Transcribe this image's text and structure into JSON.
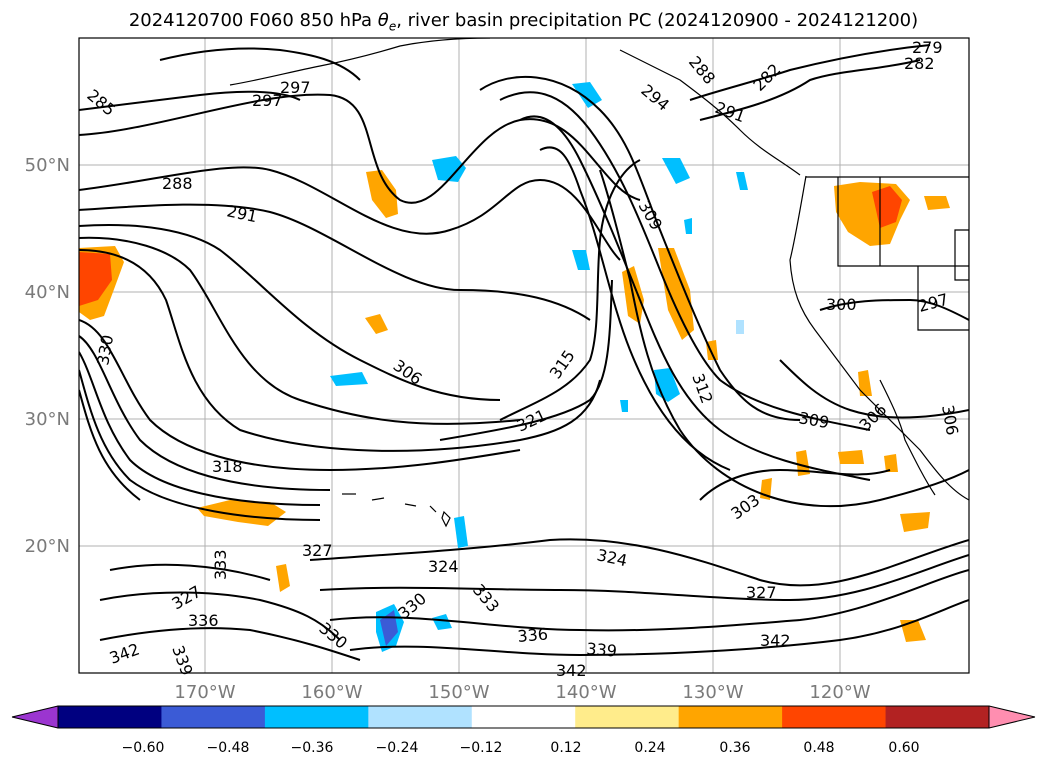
{
  "title": "2024120700 F060 850 hPa θe, river basin precipitation PC (2024120900 - 2024121200)",
  "title_parts": {
    "prefix": "2024120700 F060 850 hPa ",
    "theta": "θ",
    "sub": "e",
    "suffix": ", river basin precipitation PC (2024120900 - 2024121200)"
  },
  "map": {
    "lat_labels": [
      "50°N",
      "40°N",
      "30°N",
      "20°N"
    ],
    "lon_labels": [
      "170°W",
      "160°W",
      "150°W",
      "140°W",
      "130°W",
      "120°W"
    ],
    "contour_labels": [
      "285",
      "297",
      "297",
      "288",
      "291",
      "279",
      "282",
      "282",
      "288",
      "294",
      "291",
      "309",
      "300",
      "297",
      "306",
      "315",
      "312",
      "321",
      "309",
      "306",
      "306",
      "303",
      "318",
      "330",
      "333",
      "327",
      "327",
      "324",
      "324",
      "330",
      "333",
      "336",
      "339",
      "342",
      "342",
      "336",
      "339",
      "327",
      "342",
      "330"
    ],
    "colors": {
      "line": "#000000",
      "grid": "#b0b0b0",
      "coast": "#000000"
    }
  },
  "colorbar": {
    "ticks": [
      "−0.60",
      "−0.48",
      "−0.36",
      "−0.24",
      "−0.12",
      "0.12",
      "0.24",
      "0.36",
      "0.48",
      "0.60"
    ],
    "colors": [
      "#9b35d0",
      "#000080",
      "#3b5bd6",
      "#00bfff",
      "#b0e2ff",
      "#ffffff",
      "#ffec8b",
      "#ffa500",
      "#ff4500",
      "#b22222",
      "#ff8eb0"
    ]
  }
}
